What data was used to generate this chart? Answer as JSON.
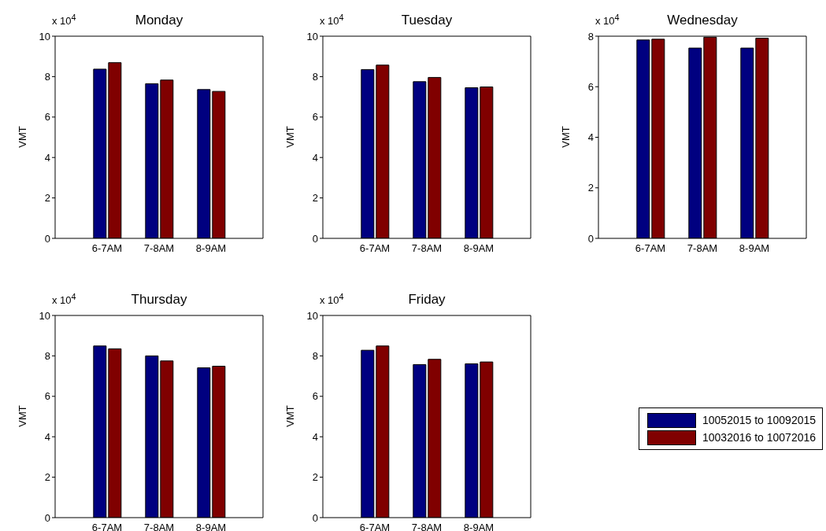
{
  "chart_data": [
    {
      "type": "bar",
      "title": "Monday",
      "ylabel": "VMT",
      "annotations": [
        "x 10$^{4}$"
      ],
      "categories": [
        "6-7AM",
        "7-8AM",
        "8-9AM"
      ],
      "ylim": [
        0,
        10
      ],
      "yticks": [
        0,
        2,
        4,
        6,
        8,
        10
      ],
      "legend": false,
      "series": [
        {
          "color": "#000080",
          "values": [
            8.37,
            7.65,
            7.36
          ]
        },
        {
          "color": "#800000",
          "values": [
            8.69,
            7.83,
            7.27
          ]
        }
      ]
    },
    {
      "type": "bar",
      "title": "Tuesday",
      "ylabel": "VMT",
      "annotations": [
        "x 10$^{4}$"
      ],
      "categories": [
        "6-7AM",
        "7-8AM",
        "8-9AM"
      ],
      "ylim": [
        0,
        10
      ],
      "yticks": [
        0,
        2,
        4,
        6,
        8,
        10
      ],
      "legend": false,
      "series": [
        {
          "color": "#000080",
          "values": [
            8.35,
            7.75,
            7.45
          ]
        },
        {
          "color": "#800000",
          "values": [
            8.57,
            7.96,
            7.49
          ]
        }
      ]
    },
    {
      "type": "bar",
      "title": "Wednesday",
      "ylabel": "VMT",
      "annotations": [
        "x 10$^{4}$"
      ],
      "categories": [
        "6-7AM",
        "7-8AM",
        "8-9AM"
      ],
      "ylim": [
        0,
        8
      ],
      "yticks": [
        0,
        2,
        4,
        6,
        8
      ],
      "legend": false,
      "series": [
        {
          "color": "#000080",
          "values": [
            7.85,
            7.53,
            7.53
          ]
        },
        {
          "color": "#800000",
          "values": [
            7.88,
            7.96,
            7.92
          ]
        }
      ]
    },
    {
      "type": "bar",
      "title": "Thursday",
      "ylabel": "VMT",
      "annotations": [
        "x 10$^{4}$"
      ],
      "categories": [
        "6-7AM",
        "7-8AM",
        "8-9AM"
      ],
      "ylim": [
        0,
        10
      ],
      "yticks": [
        0,
        2,
        4,
        6,
        8,
        10
      ],
      "legend": false,
      "series": [
        {
          "color": "#000080",
          "values": [
            8.49,
            8.0,
            7.41
          ]
        },
        {
          "color": "#800000",
          "values": [
            8.35,
            7.75,
            7.49
          ]
        }
      ]
    },
    {
      "type": "bar",
      "title": "Friday",
      "ylabel": "VMT",
      "annotations": [
        "x 10$^{4}$"
      ],
      "categories": [
        "6-7AM",
        "7-8AM",
        "8-9AM"
      ],
      "ylim": [
        0,
        10
      ],
      "yticks": [
        0,
        2,
        4,
        6,
        8,
        10
      ],
      "legend": "right",
      "series": [
        {
          "name": "10052015 to 10092015",
          "color": "#000080",
          "values": [
            8.28,
            7.57,
            7.61
          ]
        },
        {
          "name": "10032016 to 10072016",
          "color": "#800000",
          "values": [
            8.49,
            7.83,
            7.7
          ]
        }
      ]
    }
  ]
}
